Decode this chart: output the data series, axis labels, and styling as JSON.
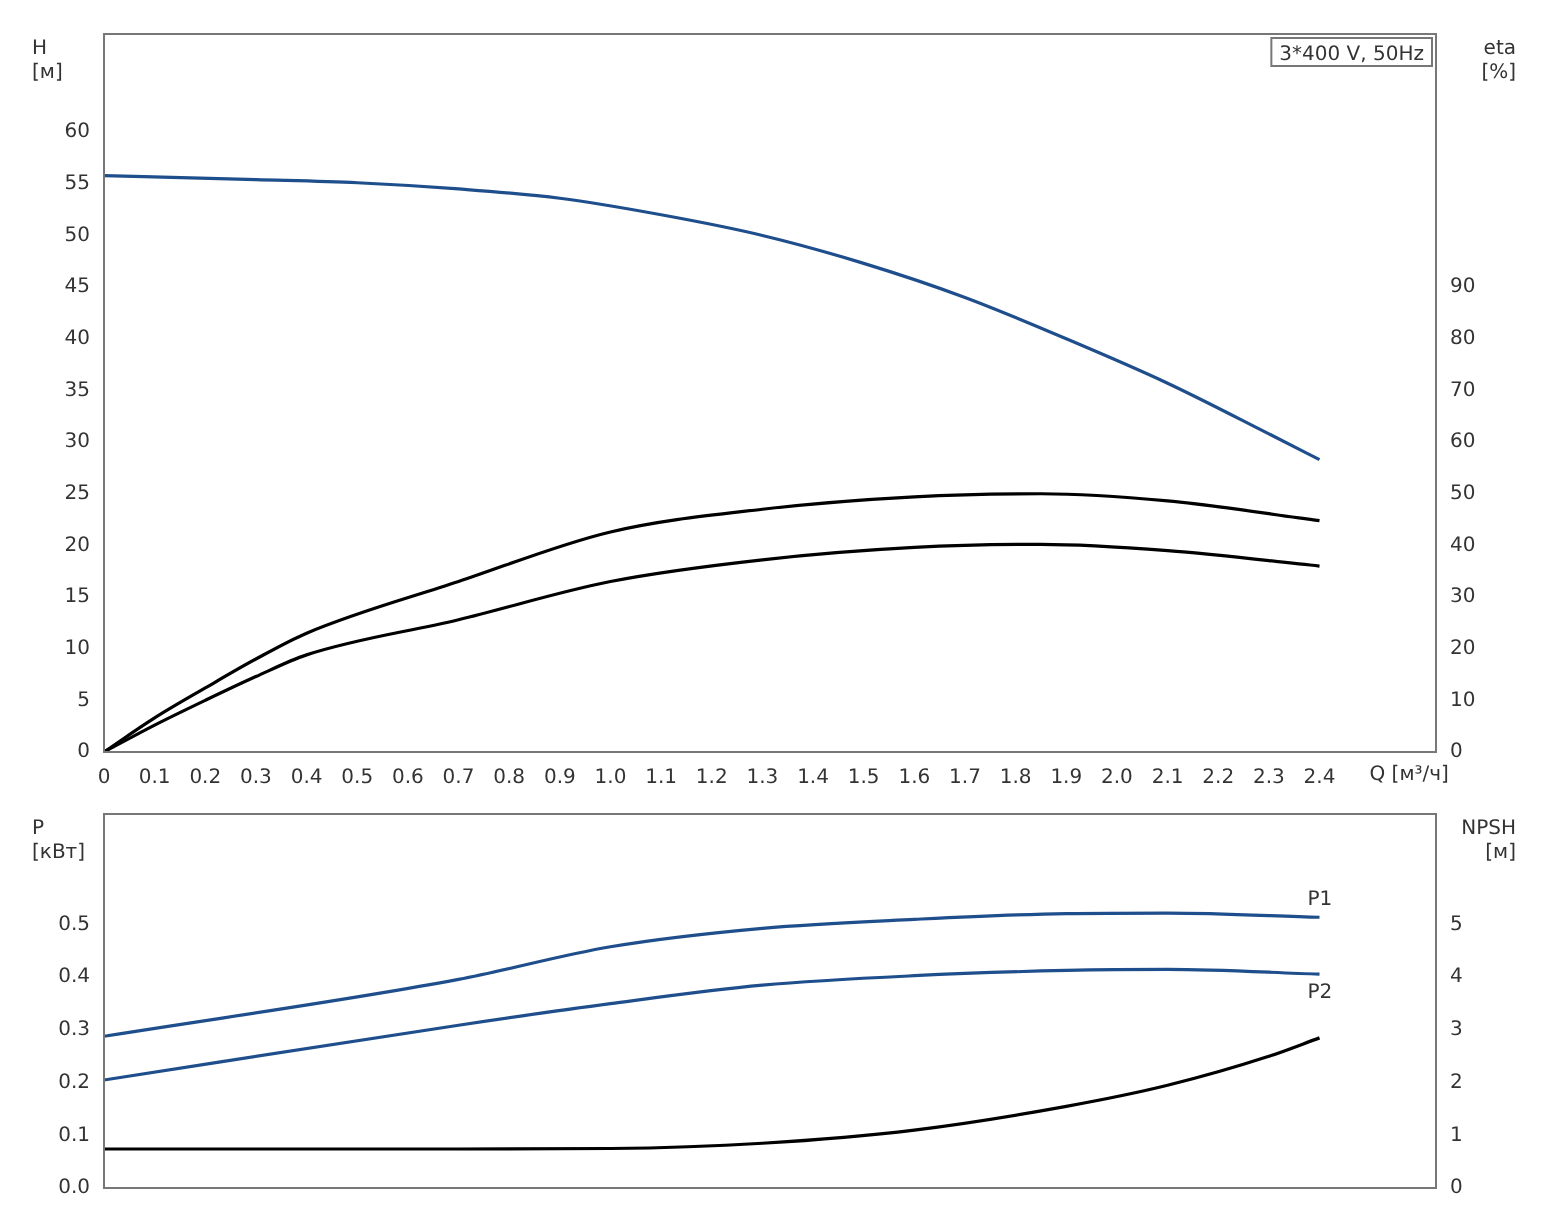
{
  "chart_data": [
    {
      "type": "line",
      "xlabel": "Q [м³/ч]",
      "ylabel": "H [м]",
      "y2label": "eta [%]",
      "annotations": [
        "3*400 V, 50Hz"
      ],
      "xlim": [
        0,
        2.63
      ],
      "xticks": [
        0,
        0.1,
        0.2,
        0.3,
        0.4,
        0.5,
        0.6,
        0.7,
        0.8,
        0.9,
        {
          "value": 1,
          "label": "1.0"
        },
        1.1,
        1.2,
        1.3,
        1.4,
        1.5,
        1.6,
        1.7,
        1.8,
        1.9,
        {
          "value": 2,
          "label": "2.0"
        },
        2.1,
        2.2,
        2.3,
        2.4
      ],
      "ylim": [
        0,
        69.5
      ],
      "yticks": [
        0,
        5,
        10,
        15,
        20,
        25,
        30,
        35,
        40,
        45,
        50,
        55,
        60
      ],
      "y2lim": [
        0,
        139
      ],
      "y2ticks": [
        0,
        10,
        20,
        30,
        40,
        50,
        60,
        70,
        80,
        90
      ],
      "grid": false,
      "legend": false,
      "tick_labels": "xy",
      "series": [
        {
          "color": "#1f4e8c",
          "x": [
            0,
            0.3,
            0.5,
            0.7,
            0.9,
            1.1,
            1.3,
            1.5,
            1.7,
            1.9,
            2.1,
            2.3,
            2.4
          ],
          "values": [
            55.8,
            55.4,
            55.1,
            54.5,
            53.6,
            52.0,
            50.0,
            47.3,
            44.0,
            40.0,
            35.7,
            30.8,
            28.3
          ]
        },
        {
          "color": "#000000",
          "axis": "y2",
          "x": [
            0,
            0.1,
            0.2,
            0.3,
            0.4,
            0.7,
            1.0,
            1.3,
            1.6,
            1.85,
            2.1,
            2.4
          ],
          "values": [
            0,
            6.6,
            12.4,
            18,
            23,
            33,
            42.6,
            47,
            49.4,
            50,
            48.6,
            44.8
          ]
        },
        {
          "color": "#000000",
          "axis": "y2",
          "x": [
            0,
            0.1,
            0.2,
            0.3,
            0.4,
            0.7,
            1.0,
            1.3,
            1.6,
            1.85,
            2.1,
            2.4
          ],
          "values": [
            0,
            5.2,
            10,
            14.6,
            18.8,
            25.6,
            33,
            37.2,
            39.6,
            40.2,
            39,
            36
          ]
        }
      ]
    },
    {
      "type": "line",
      "ylabel": "P [кВт]",
      "y2label": "NPSH [м]",
      "xlim": [
        0,
        2.63
      ],
      "xticks": [
        0,
        0.1,
        0.2,
        0.3,
        0.4,
        0.5,
        0.6,
        0.7,
        0.8,
        0.9,
        1,
        1.1,
        1.2,
        1.3,
        1.4,
        1.5,
        1.6,
        1.7,
        1.8,
        1.9,
        2,
        2.1,
        2.2,
        2.3,
        2.4
      ],
      "ylim": [
        0,
        0.71
      ],
      "yticks": [
        {
          "value": 0,
          "label": "0.0"
        },
        0.1,
        0.2,
        0.3,
        0.4,
        0.5
      ],
      "y2lim": [
        0,
        7.1
      ],
      "y2ticks": [
        0,
        1,
        2,
        3,
        4,
        5
      ],
      "grid": false,
      "legend": false,
      "tick_labels": "y",
      "series": [
        {
          "name": "P1",
          "color": "#1f4e8c",
          "x": [
            0,
            0.7,
            1.0,
            1.3,
            1.6,
            1.9,
            2.1,
            2.4
          ],
          "values": [
            0.288,
            0.396,
            0.458,
            0.493,
            0.51,
            0.521,
            0.522,
            0.514
          ]
        },
        {
          "name": "P2",
          "color": "#1f4e8c",
          "x": [
            0,
            0.7,
            1.0,
            1.3,
            1.6,
            1.9,
            2.1,
            2.4
          ],
          "values": [
            0.205,
            0.309,
            0.35,
            0.385,
            0.403,
            0.413,
            0.415,
            0.406
          ]
        },
        {
          "color": "#000000",
          "axis": "y2",
          "x": [
            0,
            0.7,
            1.0,
            1.3,
            1.6,
            1.9,
            2.1,
            2.3,
            2.4
          ],
          "values": [
            0.74,
            0.74,
            0.75,
            0.85,
            1.1,
            1.55,
            1.95,
            2.5,
            2.85
          ]
        }
      ]
    }
  ]
}
